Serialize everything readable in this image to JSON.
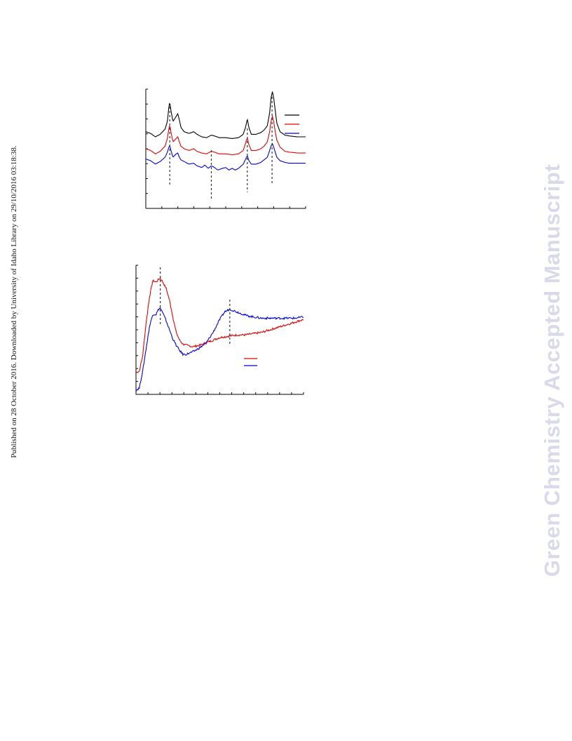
{
  "page": {
    "side_note": "Published on 28 October 2016. Downloaded by University of Idaho Library on 29/10/2016 03:18:38.",
    "watermark": "Green Chemistry Accepted Manuscript",
    "watermark_color": "#d9d9ea"
  },
  "chart_data": [
    {
      "type": "line",
      "title": "",
      "xlabel": "",
      "ylabel": "",
      "xlim": [
        0,
        100
      ],
      "ylim": [
        0,
        100
      ],
      "grid": false,
      "legend": "right",
      "reference_lines_x": [
        15,
        41,
        63.5,
        79
      ],
      "series": [
        {
          "color": "#000000",
          "offset": 40,
          "points": [
            [
              0,
              50
            ],
            [
              3,
              48
            ],
            [
              6,
              44
            ],
            [
              9,
              47
            ],
            [
              12,
              53
            ],
            [
              13.5,
              62
            ],
            [
              14.5,
              80
            ],
            [
              15,
              85
            ],
            [
              15.7,
              75
            ],
            [
              17,
              62
            ],
            [
              19,
              68
            ],
            [
              20,
              71
            ],
            [
              21,
              64
            ],
            [
              22,
              55
            ],
            [
              24,
              50
            ],
            [
              27,
              48
            ],
            [
              30,
              50
            ],
            [
              32,
              47
            ],
            [
              35,
              44
            ],
            [
              38,
              43
            ],
            [
              41,
              46
            ],
            [
              43,
              45
            ],
            [
              46,
              43
            ],
            [
              50,
              43
            ],
            [
              54,
              42
            ],
            [
              58,
              43
            ],
            [
              61,
              47
            ],
            [
              62.5,
              56
            ],
            [
              63.5,
              65
            ],
            [
              64.5,
              55
            ],
            [
              66,
              47
            ],
            [
              69,
              47
            ],
            [
              72,
              49
            ],
            [
              74,
              52
            ],
            [
              76,
              57
            ],
            [
              77.5,
              72
            ],
            [
              78.5,
              92
            ],
            [
              79.2,
              97
            ],
            [
              80,
              90
            ],
            [
              81,
              75
            ],
            [
              82,
              60
            ],
            [
              84,
              50
            ],
            [
              87,
              46
            ],
            [
              90,
              45
            ],
            [
              95,
              44
            ],
            [
              100,
              44
            ]
          ]
        },
        {
          "color": "#e60000",
          "offset": 20,
          "points": [
            [
              0,
              50
            ],
            [
              3,
              48
            ],
            [
              6,
              44
            ],
            [
              9,
              47
            ],
            [
              12,
              53
            ],
            [
              13.5,
              62
            ],
            [
              14.5,
              74
            ],
            [
              15,
              78
            ],
            [
              15.7,
              70
            ],
            [
              17,
              58
            ],
            [
              19,
              62
            ],
            [
              20,
              64
            ],
            [
              21,
              58
            ],
            [
              22,
              53
            ],
            [
              24,
              50
            ],
            [
              27,
              48
            ],
            [
              30,
              50
            ],
            [
              32,
              47
            ],
            [
              35,
              45
            ],
            [
              38,
              44
            ],
            [
              41,
              47
            ],
            [
              43,
              46
            ],
            [
              46,
              44
            ],
            [
              50,
              44
            ],
            [
              54,
              43
            ],
            [
              58,
              44
            ],
            [
              61,
              48
            ],
            [
              62.5,
              57
            ],
            [
              63.5,
              63
            ],
            [
              64.5,
              55
            ],
            [
              66,
              48
            ],
            [
              69,
              48
            ],
            [
              72,
              50
            ],
            [
              74,
              53
            ],
            [
              76,
              58
            ],
            [
              77.5,
              70
            ],
            [
              78.5,
              84
            ],
            [
              79.2,
              88
            ],
            [
              80,
              82
            ],
            [
              81,
              70
            ],
            [
              82,
              60
            ],
            [
              84,
              52
            ],
            [
              87,
              47
            ],
            [
              90,
              46
            ],
            [
              95,
              45
            ],
            [
              100,
              45
            ]
          ]
        },
        {
          "color": "#0000e6",
          "offset": 0,
          "points": [
            [
              0,
              58
            ],
            [
              3,
              56
            ],
            [
              6,
              52
            ],
            [
              9,
              55
            ],
            [
              12,
              60
            ],
            [
              13.5,
              66
            ],
            [
              14.5,
              72
            ],
            [
              15,
              74
            ],
            [
              15.7,
              68
            ],
            [
              17,
              60
            ],
            [
              19,
              64
            ],
            [
              20,
              65
            ],
            [
              21,
              60
            ],
            [
              22,
              57
            ],
            [
              24,
              55
            ],
            [
              27,
              52
            ],
            [
              30,
              53
            ],
            [
              32,
              50
            ],
            [
              35,
              48
            ],
            [
              37,
              51
            ],
            [
              39,
              47
            ],
            [
              41,
              50
            ],
            [
              43,
              48
            ],
            [
              45,
              45
            ],
            [
              48,
              47
            ],
            [
              50,
              48
            ],
            [
              52,
              45
            ],
            [
              54,
              47
            ],
            [
              56,
              45
            ],
            [
              58,
              47
            ],
            [
              61,
              52
            ],
            [
              62.5,
              58
            ],
            [
              63.5,
              62
            ],
            [
              64.5,
              56
            ],
            [
              66,
              52
            ],
            [
              69,
              52
            ],
            [
              72,
              54
            ],
            [
              74,
              57
            ],
            [
              76,
              60
            ],
            [
              77.5,
              68
            ],
            [
              78.5,
              74
            ],
            [
              79.2,
              76
            ],
            [
              80,
              72
            ],
            [
              81,
              66
            ],
            [
              82,
              60
            ],
            [
              84,
              56
            ],
            [
              87,
              54
            ],
            [
              90,
              53
            ],
            [
              95,
              53
            ],
            [
              100,
              53
            ]
          ]
        }
      ]
    },
    {
      "type": "line",
      "title": "",
      "xlabel": "",
      "ylabel": "",
      "xlim": [
        0,
        100
      ],
      "ylim": [
        0,
        100
      ],
      "grid": false,
      "legend": "lower-right",
      "reference_lines_x": [
        14.5,
        56
      ],
      "series": [
        {
          "color": "#e60000",
          "noise": 0.8,
          "points": [
            [
              0,
              17
            ],
            [
              2,
              18
            ],
            [
              4,
              30
            ],
            [
              6,
              55
            ],
            [
              8,
              75
            ],
            [
              10,
              88
            ],
            [
              12,
              87
            ],
            [
              13.5,
              89
            ],
            [
              14.5,
              90
            ],
            [
              16,
              87
            ],
            [
              18,
              82
            ],
            [
              20,
              73
            ],
            [
              22,
              60
            ],
            [
              24,
              48
            ],
            [
              26,
              42
            ],
            [
              28,
              39
            ],
            [
              30,
              38
            ],
            [
              34,
              37
            ],
            [
              38,
              38
            ],
            [
              42,
              40
            ],
            [
              46,
              42
            ],
            [
              50,
              44
            ],
            [
              55,
              45
            ],
            [
              60,
              46
            ],
            [
              65,
              46
            ],
            [
              70,
              47
            ],
            [
              75,
              48
            ],
            [
              80,
              50
            ],
            [
              85,
              52
            ],
            [
              90,
              54
            ],
            [
              95,
              56
            ],
            [
              100,
              58
            ]
          ]
        },
        {
          "color": "#0000e6",
          "noise": 0.8,
          "points": [
            [
              0,
              3
            ],
            [
              2,
              5
            ],
            [
              4,
              18
            ],
            [
              6,
              35
            ],
            [
              8,
              52
            ],
            [
              10,
              62
            ],
            [
              12,
              62
            ],
            [
              13.5,
              66
            ],
            [
              14.5,
              67
            ],
            [
              16,
              63
            ],
            [
              18,
              57
            ],
            [
              20,
              50
            ],
            [
              22,
              43
            ],
            [
              24,
              38
            ],
            [
              26,
              34
            ],
            [
              28,
              31
            ],
            [
              30,
              31
            ],
            [
              34,
              33
            ],
            [
              38,
              36
            ],
            [
              42,
              40
            ],
            [
              46,
              48
            ],
            [
              50,
              58
            ],
            [
              53,
              64
            ],
            [
              56,
              66
            ],
            [
              58,
              65
            ],
            [
              62,
              63
            ],
            [
              66,
              61
            ],
            [
              70,
              60
            ],
            [
              75,
              59
            ],
            [
              80,
              59
            ],
            [
              85,
              59
            ],
            [
              90,
              59
            ],
            [
              95,
              59
            ],
            [
              100,
              60
            ]
          ]
        }
      ]
    }
  ]
}
